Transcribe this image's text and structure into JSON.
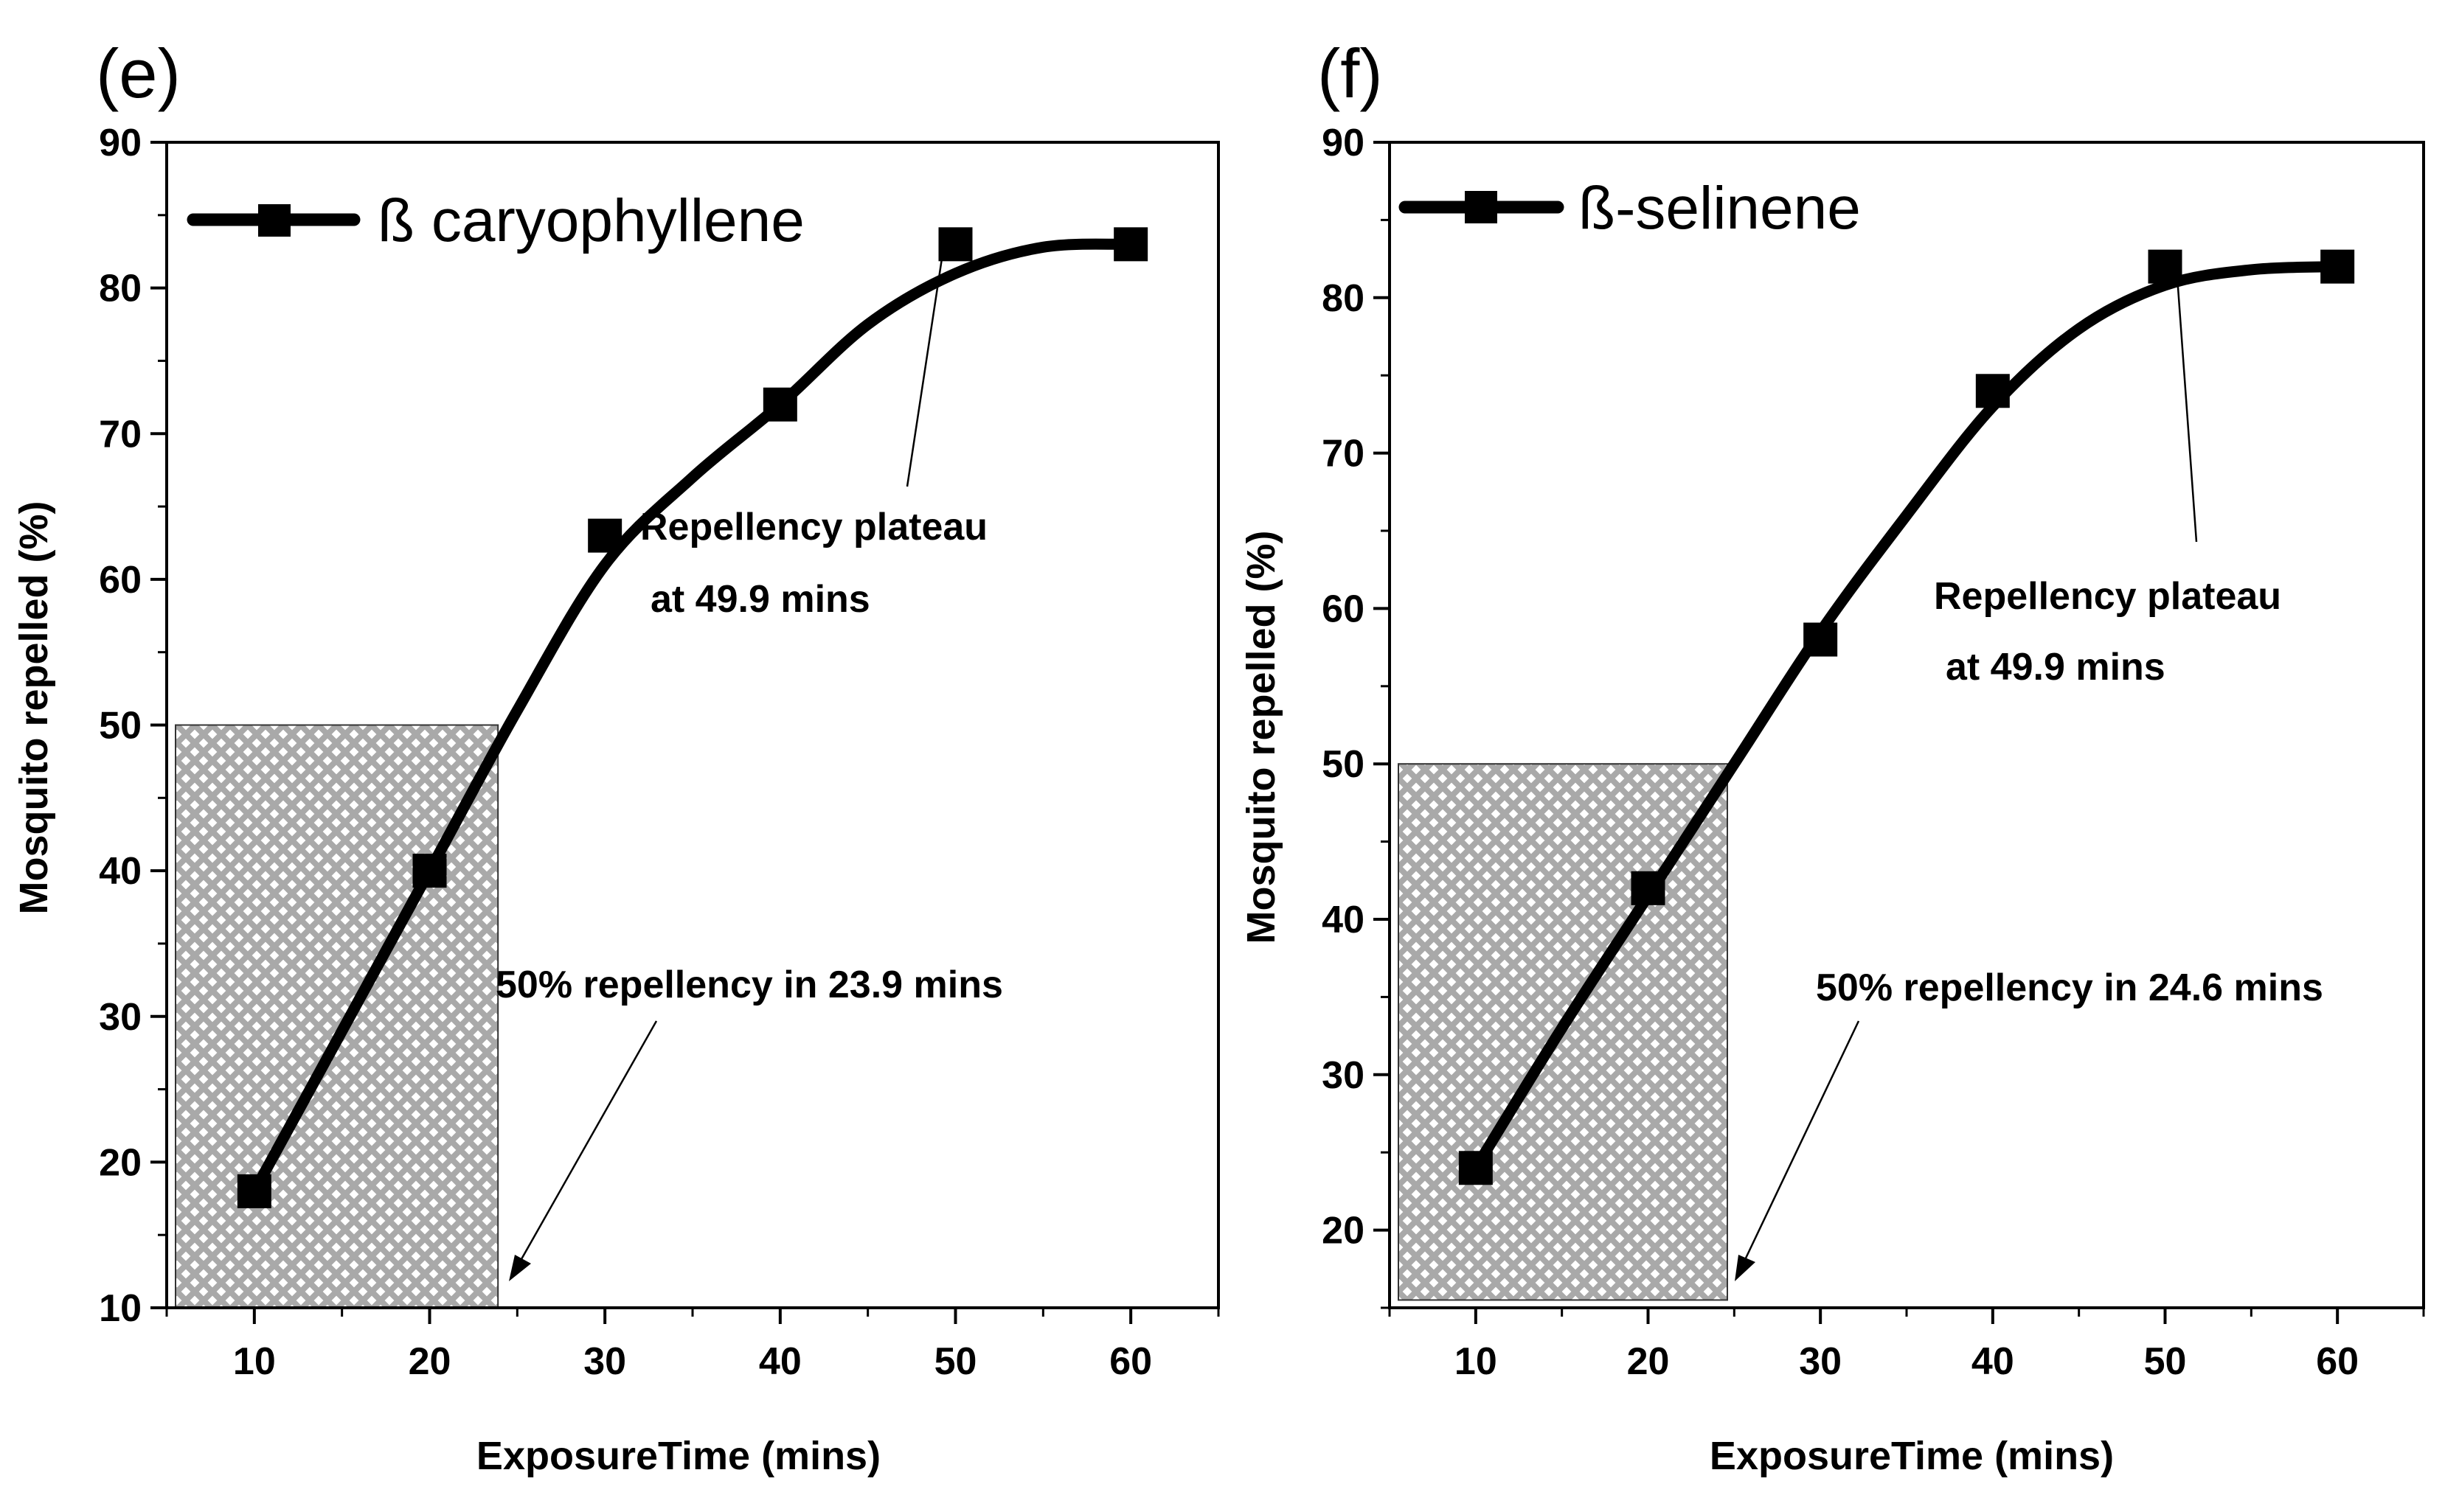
{
  "chart_data": [
    {
      "type": "line",
      "panel_label": "(e)",
      "title": "",
      "xlabel": "ExposureTime (mins)",
      "ylabel": "Mosquito  repelled (%)",
      "xlim": [
        5,
        65
      ],
      "ylim": [
        10,
        90
      ],
      "xticks": [
        10,
        20,
        30,
        40,
        50,
        60
      ],
      "yticks": [
        10,
        20,
        30,
        40,
        50,
        60,
        70,
        80,
        90
      ],
      "grid": false,
      "legend_position": "top-left",
      "series": [
        {
          "name": "ß caryophyllene",
          "marker": "square",
          "x": [
            10,
            20,
            30,
            40,
            50,
            60
          ],
          "y": [
            18,
            40,
            63,
            72,
            83,
            83
          ]
        }
      ],
      "fit_curve": {
        "x": [
          10,
          15,
          20,
          25,
          30,
          35,
          40,
          45,
          50,
          55,
          60
        ],
        "y": [
          18,
          29,
          40,
          51,
          61,
          67,
          72,
          77.5,
          81,
          82.8,
          83
        ]
      },
      "shaded_region": {
        "x": [
          5,
          23.9
        ],
        "y": [
          10,
          50
        ]
      },
      "annotations": [
        {
          "line1": "Repellency plateau",
          "line2": "at 49.9 mins",
          "target": [
            50,
            81
          ]
        },
        {
          "line1": "50% repellency in 23.9 mins",
          "target": [
            24.2,
            12.5
          ]
        }
      ]
    },
    {
      "type": "line",
      "panel_label": "(f)",
      "title": "",
      "xlabel": "ExposureTime (mins)",
      "ylabel": "Mosquito  repelled (%)",
      "xlim": [
        5,
        65
      ],
      "ylim": [
        15,
        90
      ],
      "xticks": [
        10,
        20,
        30,
        40,
        50,
        60
      ],
      "yticks": [
        20,
        30,
        40,
        50,
        60,
        70,
        80,
        90
      ],
      "grid": false,
      "legend_position": "top-left",
      "series": [
        {
          "name": "ß-selinene",
          "marker": "square",
          "x": [
            10,
            20,
            30,
            40,
            50,
            60
          ],
          "y": [
            24,
            42,
            58,
            74,
            82,
            82
          ]
        }
      ],
      "fit_curve": {
        "x": [
          10,
          15,
          20,
          25,
          30,
          35,
          40,
          45,
          50,
          55,
          60
        ],
        "y": [
          24,
          33,
          41.5,
          50,
          58.5,
          66,
          73,
          78,
          80.8,
          81.8,
          82
        ]
      },
      "shaded_region": {
        "x": [
          5,
          24.6
        ],
        "y": [
          15.5,
          50
        ]
      },
      "annotations": [
        {
          "line1": "Repellency plateau",
          "line2": "at 49.9 mins",
          "target": [
            50,
            81
          ]
        },
        {
          "line1": "50% repellency in 24.6 mins",
          "target": [
            24.9,
            16.5
          ]
        }
      ]
    }
  ]
}
